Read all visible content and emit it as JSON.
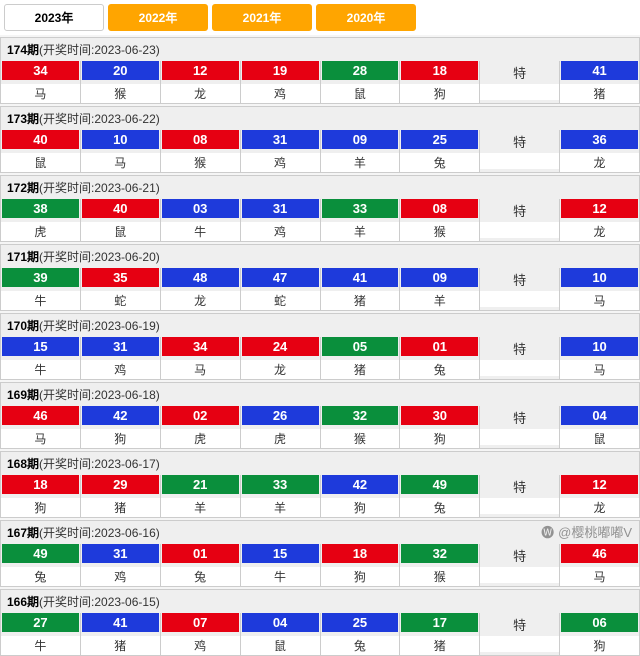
{
  "tabs": [
    {
      "label": "2023年",
      "active": true
    },
    {
      "label": "2022年",
      "active": false
    },
    {
      "label": "2021年",
      "active": false
    },
    {
      "label": "2020年",
      "active": false
    }
  ],
  "special_label": "特",
  "colors": {
    "red": "#e60012",
    "blue": "#1e3adb",
    "green": "#0a8f3c"
  },
  "periods": [
    {
      "no": "174",
      "date": "2023-06-23",
      "balls": [
        {
          "n": "34",
          "z": "马",
          "c": "red"
        },
        {
          "n": "20",
          "z": "猴",
          "c": "blue"
        },
        {
          "n": "12",
          "z": "龙",
          "c": "red"
        },
        {
          "n": "19",
          "z": "鸡",
          "c": "red"
        },
        {
          "n": "28",
          "z": "鼠",
          "c": "green"
        },
        {
          "n": "18",
          "z": "狗",
          "c": "red"
        }
      ],
      "special": {
        "n": "41",
        "z": "猪",
        "c": "blue"
      }
    },
    {
      "no": "173",
      "date": "2023-06-22",
      "balls": [
        {
          "n": "40",
          "z": "鼠",
          "c": "red"
        },
        {
          "n": "10",
          "z": "马",
          "c": "blue"
        },
        {
          "n": "08",
          "z": "猴",
          "c": "red"
        },
        {
          "n": "31",
          "z": "鸡",
          "c": "blue"
        },
        {
          "n": "09",
          "z": "羊",
          "c": "blue"
        },
        {
          "n": "25",
          "z": "兔",
          "c": "blue"
        }
      ],
      "special": {
        "n": "36",
        "z": "龙",
        "c": "blue"
      }
    },
    {
      "no": "172",
      "date": "2023-06-21",
      "balls": [
        {
          "n": "38",
          "z": "虎",
          "c": "green"
        },
        {
          "n": "40",
          "z": "鼠",
          "c": "red"
        },
        {
          "n": "03",
          "z": "牛",
          "c": "blue"
        },
        {
          "n": "31",
          "z": "鸡",
          "c": "blue"
        },
        {
          "n": "33",
          "z": "羊",
          "c": "green"
        },
        {
          "n": "08",
          "z": "猴",
          "c": "red"
        }
      ],
      "special": {
        "n": "12",
        "z": "龙",
        "c": "red"
      }
    },
    {
      "no": "171",
      "date": "2023-06-20",
      "balls": [
        {
          "n": "39",
          "z": "牛",
          "c": "green"
        },
        {
          "n": "35",
          "z": "蛇",
          "c": "red"
        },
        {
          "n": "48",
          "z": "龙",
          "c": "blue"
        },
        {
          "n": "47",
          "z": "蛇",
          "c": "blue"
        },
        {
          "n": "41",
          "z": "猪",
          "c": "blue"
        },
        {
          "n": "09",
          "z": "羊",
          "c": "blue"
        }
      ],
      "special": {
        "n": "10",
        "z": "马",
        "c": "blue"
      }
    },
    {
      "no": "170",
      "date": "2023-06-19",
      "balls": [
        {
          "n": "15",
          "z": "牛",
          "c": "blue"
        },
        {
          "n": "31",
          "z": "鸡",
          "c": "blue"
        },
        {
          "n": "34",
          "z": "马",
          "c": "red"
        },
        {
          "n": "24",
          "z": "龙",
          "c": "red"
        },
        {
          "n": "05",
          "z": "猪",
          "c": "green"
        },
        {
          "n": "01",
          "z": "兔",
          "c": "red"
        }
      ],
      "special": {
        "n": "10",
        "z": "马",
        "c": "blue"
      }
    },
    {
      "no": "169",
      "date": "2023-06-18",
      "balls": [
        {
          "n": "46",
          "z": "马",
          "c": "red"
        },
        {
          "n": "42",
          "z": "狗",
          "c": "blue"
        },
        {
          "n": "02",
          "z": "虎",
          "c": "red"
        },
        {
          "n": "26",
          "z": "虎",
          "c": "blue"
        },
        {
          "n": "32",
          "z": "猴",
          "c": "green"
        },
        {
          "n": "30",
          "z": "狗",
          "c": "red"
        }
      ],
      "special": {
        "n": "04",
        "z": "鼠",
        "c": "blue"
      }
    },
    {
      "no": "168",
      "date": "2023-06-17",
      "balls": [
        {
          "n": "18",
          "z": "狗",
          "c": "red"
        },
        {
          "n": "29",
          "z": "猪",
          "c": "red"
        },
        {
          "n": "21",
          "z": "羊",
          "c": "green"
        },
        {
          "n": "33",
          "z": "羊",
          "c": "green"
        },
        {
          "n": "42",
          "z": "狗",
          "c": "blue"
        },
        {
          "n": "49",
          "z": "兔",
          "c": "green"
        }
      ],
      "special": {
        "n": "12",
        "z": "龙",
        "c": "red"
      }
    },
    {
      "no": "167",
      "date": "2023-06-16",
      "balls": [
        {
          "n": "49",
          "z": "兔",
          "c": "green"
        },
        {
          "n": "31",
          "z": "鸡",
          "c": "blue"
        },
        {
          "n": "01",
          "z": "兔",
          "c": "red"
        },
        {
          "n": "15",
          "z": "牛",
          "c": "blue"
        },
        {
          "n": "18",
          "z": "狗",
          "c": "red"
        },
        {
          "n": "32",
          "z": "猴",
          "c": "green"
        }
      ],
      "special": {
        "n": "46",
        "z": "马",
        "c": "red"
      }
    },
    {
      "no": "166",
      "date": "2023-06-15",
      "balls": [
        {
          "n": "27",
          "z": "牛",
          "c": "green"
        },
        {
          "n": "41",
          "z": "猪",
          "c": "blue"
        },
        {
          "n": "07",
          "z": "鸡",
          "c": "red"
        },
        {
          "n": "04",
          "z": "鼠",
          "c": "blue"
        },
        {
          "n": "25",
          "z": "兔",
          "c": "blue"
        },
        {
          "n": "17",
          "z": "猪",
          "c": "green"
        }
      ],
      "special": {
        "n": "06",
        "z": "狗",
        "c": "green"
      }
    }
  ],
  "watermark": "@樱桃嘟嘟V"
}
